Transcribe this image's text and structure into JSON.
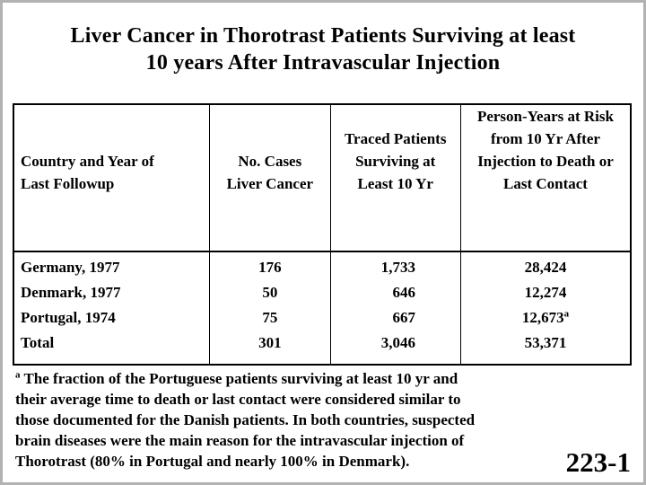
{
  "page": {
    "title_line1": "Liver Cancer in Thorotrast Patients Surviving at least",
    "title_line2": "10 years After Intravascular Injection",
    "slide_number": "223-1"
  },
  "table": {
    "headers": {
      "country": {
        "line1": "Country and Year of",
        "line2": "Last Followup"
      },
      "cases": {
        "line1": "No. Cases",
        "line2": "Liver Cancer"
      },
      "traced": {
        "line1": "Traced Patients",
        "line2": "Surviving at",
        "line3": "Least 10 Yr"
      },
      "person_years": {
        "line1": "Person-Years at Risk",
        "line2": "from 10 Yr After",
        "line3": "Injection to Death or",
        "line4": "Last Contact"
      }
    },
    "rows": [
      {
        "country": "Germany, 1977",
        "cases": "176",
        "traced": "1,733",
        "person_years": "28,424",
        "person_years_sup": ""
      },
      {
        "country": "Denmark, 1977",
        "cases": "50",
        "traced": "646",
        "person_years": "12,274",
        "person_years_sup": ""
      },
      {
        "country": "Portugal, 1974",
        "cases": "75",
        "traced": "667",
        "person_years": "12,673",
        "person_years_sup": "a"
      },
      {
        "country": "Total",
        "cases": "301",
        "traced": "3,046",
        "person_years": "53,371",
        "person_years_sup": ""
      }
    ]
  },
  "footnote": {
    "marker": "a",
    "line1": "The fraction of the Portuguese patients surviving at least 10 yr and",
    "line2": "their average time to death or last contact were considered similar to",
    "line3": "those documented for the Danish patients. In both countries, suspected",
    "line4": "brain diseases were the main reason for the intravascular injection of",
    "line5": "Thorotrast (80% in Portugal and nearly 100% in Denmark)."
  },
  "colors": {
    "text": "#000000",
    "background": "#ffffff",
    "page_edge": "#b2b2b2",
    "table_border": "#000000"
  }
}
